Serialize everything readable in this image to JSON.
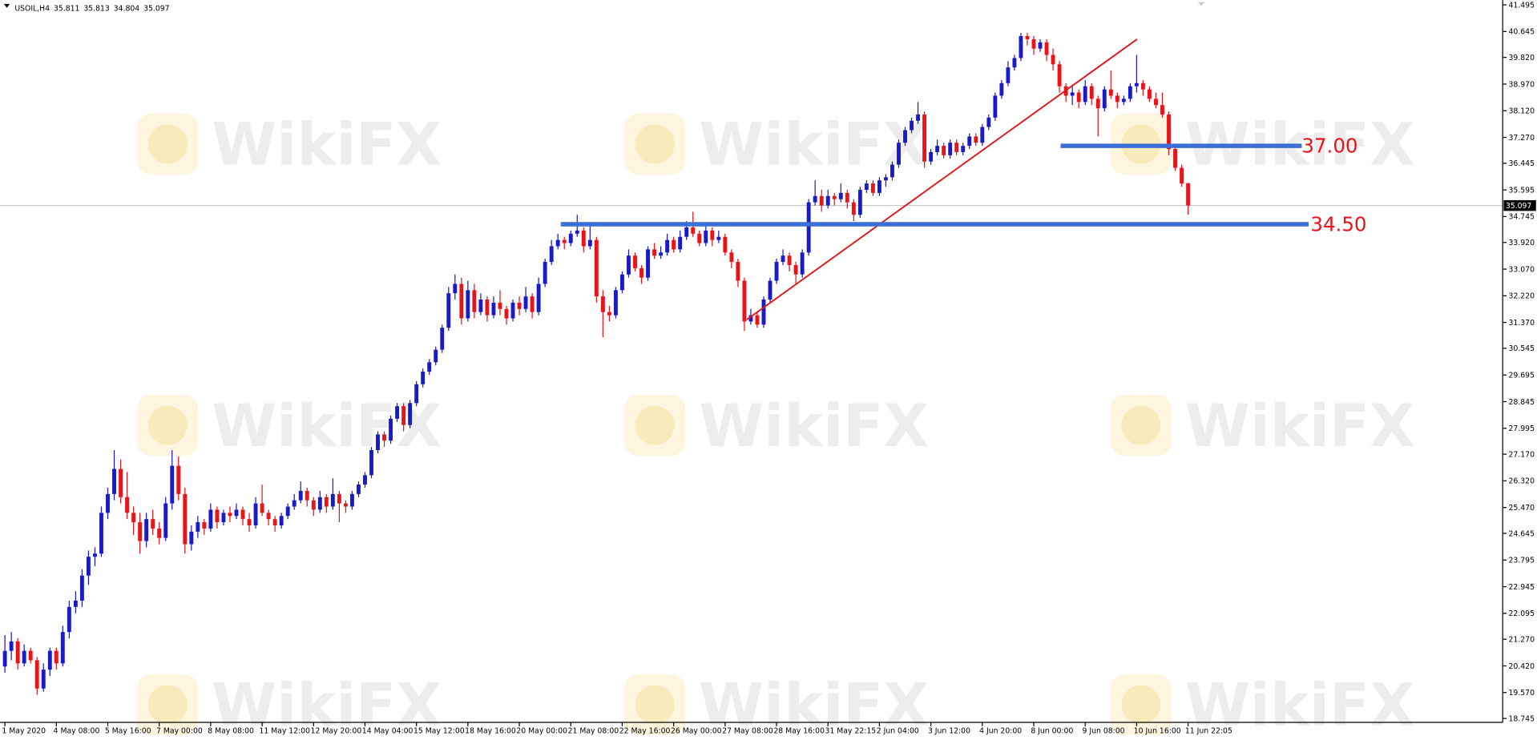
{
  "chart_data": {
    "type": "candlestick",
    "symbol": "USOIL,H4",
    "watermark": "WikiFX",
    "up_color": "#1a1ac8",
    "down_color": "#e8141a",
    "level_color": "#3b6fd6",
    "level_label_color": "#e8141a",
    "last_line_color": "#c0c0c0",
    "ylim": [
      18.62,
      41.65
    ],
    "yticks": [
      41.495,
      40.645,
      {
        "value": 39.82,
        "label": "39.820"
      },
      {
        "value": 38.97,
        "label": "38.970"
      },
      {
        "value": 38.12,
        "label": "38.120"
      },
      {
        "value": 37.27,
        "label": "37.270"
      },
      36.445,
      35.595,
      34.745,
      {
        "value": 33.92,
        "label": "33.920"
      },
      {
        "value": 33.07,
        "label": "33.070"
      },
      {
        "value": 32.22,
        "label": "32.220"
      },
      {
        "value": 31.37,
        "label": "31.370"
      },
      30.545,
      29.695,
      28.845,
      27.995,
      {
        "value": 27.17,
        "label": "27.170"
      },
      {
        "value": 26.32,
        "label": "26.320"
      },
      {
        "value": 25.47,
        "label": "25.470"
      },
      24.645,
      23.795,
      22.945,
      22.095,
      {
        "value": 21.27,
        "label": "21.270"
      },
      {
        "value": 20.42,
        "label": "20.420"
      },
      {
        "value": 19.57,
        "label": "19.570"
      },
      18.745
    ],
    "levels": [
      {
        "value": 37,
        "label": "37.00"
      },
      {
        "value": 34.5,
        "label": "34.50"
      }
    ],
    "last_price_label": "35.097",
    "categories": [
      "1 May 2020",
      null,
      null,
      null,
      null,
      null,
      null,
      null,
      "4 May 08:00",
      null,
      null,
      null,
      null,
      null,
      null,
      null,
      "5 May 16:00",
      null,
      null,
      null,
      null,
      null,
      null,
      null,
      "7 May 00:00",
      null,
      null,
      null,
      null,
      null,
      null,
      null,
      "8 May 08:00",
      null,
      null,
      null,
      null,
      null,
      null,
      null,
      "11 May 12:00",
      null,
      null,
      null,
      null,
      null,
      null,
      null,
      "12 May 20:00",
      null,
      null,
      null,
      null,
      null,
      null,
      null,
      "14 May 04:00",
      null,
      null,
      null,
      null,
      null,
      null,
      null,
      "15 May 12:00",
      null,
      null,
      null,
      null,
      null,
      null,
      null,
      "18 May 16:00",
      null,
      null,
      null,
      null,
      null,
      null,
      null,
      "20 May 00:00",
      null,
      null,
      null,
      null,
      null,
      null,
      null,
      "21 May 08:00",
      null,
      null,
      null,
      null,
      null,
      null,
      null,
      "22 May 16:00",
      null,
      null,
      null,
      null,
      null,
      null,
      null,
      "26 May 00:00",
      null,
      null,
      null,
      null,
      null,
      null,
      null,
      "27 May 08:00",
      null,
      null,
      null,
      null,
      null,
      null,
      null,
      "28 May 16:00",
      null,
      null,
      null,
      null,
      null,
      null,
      null,
      "31 May 22:15",
      null,
      null,
      null,
      null,
      null,
      null,
      null,
      "2 Jun 04:00",
      null,
      null,
      null,
      null,
      null,
      null,
      null,
      "3 Jun 12:00",
      null,
      null,
      null,
      null,
      null,
      null,
      null,
      "4 Jun 20:00",
      null,
      null,
      null,
      null,
      null,
      null,
      null,
      "8 Jun 00:00",
      null,
      null,
      null,
      null,
      null,
      null,
      null,
      "9 Jun 08:00",
      null,
      null,
      null,
      null,
      null,
      null,
      null,
      "10 Jun 16:00",
      null,
      null,
      null,
      null,
      null,
      null,
      null,
      "11 Jun 22:05"
    ],
    "ohlc": [
      [
        20.4,
        21.4,
        20.2,
        20.9
      ],
      [
        20.9,
        21.5,
        20.6,
        21.2
      ],
      [
        21.2,
        21.3,
        20.3,
        20.5
      ],
      [
        20.5,
        21.1,
        20.4,
        20.9
      ],
      [
        20.9,
        21.0,
        20.5,
        20.6
      ],
      [
        20.6,
        20.7,
        19.5,
        19.7
      ],
      [
        19.7,
        20.5,
        19.6,
        20.3
      ],
      [
        20.3,
        21.0,
        20.1,
        20.9
      ],
      [
        20.9,
        21.0,
        20.3,
        20.5
      ],
      [
        20.5,
        21.7,
        20.4,
        21.5
      ],
      [
        21.5,
        22.5,
        21.3,
        22.3
      ],
      [
        22.3,
        22.8,
        22.1,
        22.5
      ],
      [
        22.5,
        23.5,
        22.3,
        23.3
      ],
      [
        23.3,
        24.1,
        23.0,
        23.9
      ],
      [
        23.9,
        24.2,
        23.6,
        24.0
      ],
      [
        24.0,
        25.5,
        23.9,
        25.3
      ],
      [
        25.3,
        26.1,
        25.1,
        25.9
      ],
      [
        25.9,
        27.3,
        25.7,
        26.7
      ],
      [
        26.7,
        27.0,
        25.6,
        25.8
      ],
      [
        25.8,
        26.6,
        25.1,
        25.3
      ],
      [
        25.3,
        25.5,
        24.6,
        25.0
      ],
      [
        25.0,
        25.3,
        24.0,
        24.4
      ],
      [
        24.4,
        25.3,
        24.2,
        25.1
      ],
      [
        25.1,
        25.4,
        24.6,
        24.8
      ],
      [
        24.8,
        25.0,
        24.3,
        24.5
      ],
      [
        24.5,
        25.8,
        24.4,
        25.6
      ],
      [
        25.6,
        27.3,
        25.4,
        26.8
      ],
      [
        26.8,
        27.1,
        25.7,
        25.9
      ],
      [
        25.9,
        26.1,
        24.0,
        24.3
      ],
      [
        24.3,
        24.9,
        24.1,
        24.7
      ],
      [
        24.7,
        25.2,
        24.5,
        25.0
      ],
      [
        25.0,
        25.1,
        24.6,
        24.8
      ],
      [
        24.8,
        25.6,
        24.7,
        25.4
      ],
      [
        25.4,
        25.5,
        24.8,
        25.0
      ],
      [
        25.0,
        25.4,
        24.9,
        25.3
      ],
      [
        25.3,
        25.5,
        25.0,
        25.2
      ],
      [
        25.2,
        25.6,
        25.1,
        25.4
      ],
      [
        25.4,
        25.5,
        24.9,
        25.1
      ],
      [
        25.1,
        25.3,
        24.7,
        24.9
      ],
      [
        24.9,
        25.8,
        24.8,
        25.6
      ],
      [
        25.6,
        26.2,
        25.2,
        25.3
      ],
      [
        25.3,
        25.4,
        24.9,
        25.1
      ],
      [
        25.1,
        25.2,
        24.7,
        24.9
      ],
      [
        24.9,
        25.3,
        24.8,
        25.2
      ],
      [
        25.2,
        25.6,
        25.1,
        25.5
      ],
      [
        25.5,
        25.9,
        25.4,
        25.7
      ],
      [
        25.7,
        26.3,
        25.6,
        26.0
      ],
      [
        26.0,
        26.1,
        25.5,
        25.7
      ],
      [
        25.7,
        25.8,
        25.2,
        25.4
      ],
      [
        25.4,
        26.0,
        25.3,
        25.8
      ],
      [
        25.8,
        25.9,
        25.3,
        25.5
      ],
      [
        25.5,
        26.4,
        25.4,
        25.9
      ],
      [
        25.9,
        26.0,
        25.0,
        25.6
      ],
      [
        25.6,
        25.7,
        25.3,
        25.5
      ],
      [
        25.5,
        26.0,
        25.4,
        25.9
      ],
      [
        25.9,
        26.3,
        25.8,
        26.2
      ],
      [
        26.2,
        26.6,
        26.1,
        26.5
      ],
      [
        26.5,
        27.4,
        26.4,
        27.3
      ],
      [
        27.3,
        27.9,
        27.2,
        27.8
      ],
      [
        27.8,
        27.9,
        27.4,
        27.6
      ],
      [
        27.6,
        28.4,
        27.5,
        28.3
      ],
      [
        28.3,
        28.8,
        28.2,
        28.7
      ],
      [
        28.7,
        28.8,
        27.9,
        28.1
      ],
      [
        28.1,
        28.9,
        28.0,
        28.8
      ],
      [
        28.8,
        29.5,
        28.7,
        29.4
      ],
      [
        29.4,
        29.9,
        29.3,
        29.8
      ],
      [
        29.8,
        30.2,
        29.7,
        30.1
      ],
      [
        30.1,
        30.6,
        30.0,
        30.5
      ],
      [
        30.5,
        31.3,
        30.4,
        31.2
      ],
      [
        31.2,
        32.5,
        31.1,
        32.3
      ],
      [
        32.3,
        32.9,
        32.1,
        32.6
      ],
      [
        32.6,
        32.8,
        31.3,
        31.5
      ],
      [
        31.5,
        32.7,
        31.4,
        32.4
      ],
      [
        32.4,
        32.6,
        31.5,
        31.7
      ],
      [
        31.7,
        32.3,
        31.6,
        32.1
      ],
      [
        32.1,
        32.2,
        31.4,
        31.6
      ],
      [
        31.6,
        32.2,
        31.5,
        32.0
      ],
      [
        32.0,
        32.4,
        31.6,
        31.8
      ],
      [
        31.8,
        31.9,
        31.3,
        31.5
      ],
      [
        31.5,
        32.1,
        31.4,
        32.0
      ],
      [
        32.0,
        32.2,
        31.6,
        31.8
      ],
      [
        31.8,
        32.5,
        31.7,
        32.2
      ],
      [
        32.2,
        32.3,
        31.5,
        31.7
      ],
      [
        31.7,
        32.8,
        31.6,
        32.6
      ],
      [
        32.6,
        33.4,
        32.5,
        33.3
      ],
      [
        33.3,
        34.0,
        33.2,
        33.8
      ],
      [
        33.8,
        34.2,
        33.7,
        34.0
      ],
      [
        34.0,
        34.1,
        33.7,
        33.9
      ],
      [
        33.9,
        34.3,
        33.8,
        34.2
      ],
      [
        34.2,
        34.8,
        34.1,
        34.3
      ],
      [
        34.3,
        34.4,
        33.6,
        33.8
      ],
      [
        33.8,
        34.5,
        33.7,
        34.0
      ],
      [
        34.0,
        34.1,
        32.0,
        32.2
      ],
      [
        32.2,
        32.4,
        30.9,
        31.7
      ],
      [
        31.7,
        31.9,
        31.4,
        31.6
      ],
      [
        31.6,
        32.5,
        31.5,
        32.4
      ],
      [
        32.4,
        33.0,
        32.3,
        32.9
      ],
      [
        32.9,
        33.7,
        32.8,
        33.5
      ],
      [
        33.5,
        33.6,
        33.0,
        33.1
      ],
      [
        33.1,
        33.2,
        32.6,
        32.8
      ],
      [
        32.8,
        33.8,
        32.7,
        33.7
      ],
      [
        33.7,
        33.9,
        33.4,
        33.5
      ],
      [
        33.5,
        33.8,
        33.4,
        33.6
      ],
      [
        33.6,
        34.2,
        33.5,
        34.0
      ],
      [
        34.0,
        34.1,
        33.6,
        33.7
      ],
      [
        33.7,
        34.3,
        33.6,
        34.1
      ],
      [
        34.1,
        34.6,
        34.0,
        34.4
      ],
      [
        34.4,
        34.9,
        34.1,
        34.2
      ],
      [
        34.2,
        34.3,
        33.8,
        33.9
      ],
      [
        33.9,
        34.5,
        33.8,
        34.3
      ],
      [
        34.3,
        34.4,
        33.8,
        34.0
      ],
      [
        34.0,
        34.3,
        33.9,
        34.1
      ],
      [
        34.1,
        34.2,
        33.5,
        33.6
      ],
      [
        33.6,
        33.7,
        33.1,
        33.3
      ],
      [
        33.3,
        33.4,
        32.5,
        32.7
      ],
      [
        32.7,
        32.8,
        31.1,
        31.4
      ],
      [
        31.4,
        31.8,
        31.3,
        31.6
      ],
      [
        31.6,
        31.7,
        31.2,
        31.3
      ],
      [
        31.3,
        32.2,
        31.2,
        32.1
      ],
      [
        32.1,
        32.8,
        32.0,
        32.7
      ],
      [
        32.7,
        33.4,
        32.6,
        33.3
      ],
      [
        33.3,
        33.7,
        33.2,
        33.5
      ],
      [
        33.5,
        33.6,
        33.0,
        33.2
      ],
      [
        33.2,
        33.3,
        32.6,
        32.9
      ],
      [
        32.9,
        33.7,
        32.8,
        33.6
      ],
      [
        33.6,
        35.3,
        33.5,
        35.2
      ],
      [
        35.2,
        35.9,
        35.1,
        35.4
      ],
      [
        35.4,
        35.6,
        34.9,
        35.1
      ],
      [
        35.1,
        35.6,
        35.0,
        35.4
      ],
      [
        35.4,
        35.5,
        35.1,
        35.3
      ],
      [
        35.3,
        35.8,
        35.2,
        35.5
      ],
      [
        35.5,
        35.6,
        35.0,
        35.2
      ],
      [
        35.2,
        35.3,
        34.6,
        34.8
      ],
      [
        34.8,
        35.7,
        34.7,
        35.6
      ],
      [
        35.6,
        35.9,
        35.5,
        35.8
      ],
      [
        35.8,
        35.9,
        35.4,
        35.5
      ],
      [
        35.5,
        36.0,
        35.4,
        35.9
      ],
      [
        35.9,
        36.1,
        35.7,
        36.0
      ],
      [
        36.0,
        36.5,
        35.9,
        36.4
      ],
      [
        36.4,
        37.2,
        36.3,
        37.1
      ],
      [
        37.1,
        37.6,
        37.0,
        37.5
      ],
      [
        37.5,
        37.9,
        37.4,
        37.8
      ],
      [
        37.8,
        38.4,
        37.7,
        38.0
      ],
      [
        38.0,
        38.1,
        36.3,
        36.5
      ],
      [
        36.5,
        36.9,
        36.4,
        36.8
      ],
      [
        36.8,
        37.2,
        36.7,
        37.0
      ],
      [
        37.0,
        37.1,
        36.6,
        36.7
      ],
      [
        36.7,
        37.2,
        36.6,
        37.1
      ],
      [
        37.1,
        37.2,
        36.7,
        36.8
      ],
      [
        36.8,
        37.1,
        36.7,
        37.0
      ],
      [
        37.0,
        37.4,
        36.9,
        37.3
      ],
      [
        37.3,
        37.4,
        37.0,
        37.1
      ],
      [
        37.1,
        37.7,
        37.0,
        37.6
      ],
      [
        37.6,
        38.0,
        37.5,
        37.9
      ],
      [
        37.9,
        38.7,
        37.8,
        38.6
      ],
      [
        38.6,
        39.1,
        38.5,
        39.0
      ],
      [
        39.0,
        39.7,
        38.9,
        39.5
      ],
      [
        39.5,
        39.9,
        39.4,
        39.8
      ],
      [
        39.8,
        40.6,
        39.7,
        40.5
      ],
      [
        40.5,
        40.6,
        40.2,
        40.4
      ],
      [
        40.4,
        40.5,
        39.9,
        40.1
      ],
      [
        40.1,
        40.4,
        40.0,
        40.3
      ],
      [
        40.3,
        40.4,
        39.7,
        39.9
      ],
      [
        39.9,
        40.1,
        39.4,
        39.6
      ],
      [
        39.6,
        39.7,
        38.7,
        38.9
      ],
      [
        38.9,
        39.0,
        38.4,
        38.6
      ],
      [
        38.6,
        38.9,
        38.3,
        38.7
      ],
      [
        38.7,
        38.8,
        38.2,
        38.4
      ],
      [
        38.4,
        39.1,
        38.3,
        38.9
      ],
      [
        38.9,
        39.0,
        38.3,
        38.5
      ],
      [
        38.5,
        38.6,
        37.3,
        38.2
      ],
      [
        38.2,
        38.9,
        38.1,
        38.8
      ],
      [
        38.8,
        39.4,
        38.5,
        38.6
      ],
      [
        38.6,
        38.7,
        38.2,
        38.4
      ],
      [
        38.4,
        38.6,
        38.3,
        38.5
      ],
      [
        38.5,
        39.0,
        38.4,
        38.9
      ],
      [
        38.9,
        39.9,
        38.7,
        39.0
      ],
      [
        39.0,
        39.1,
        38.6,
        38.8
      ],
      [
        38.8,
        38.9,
        38.4,
        38.5
      ],
      [
        38.5,
        38.7,
        38.2,
        38.3
      ],
      [
        38.3,
        38.7,
        37.9,
        38.0
      ],
      [
        38.0,
        38.1,
        36.7,
        36.9
      ],
      [
        36.9,
        37.0,
        36.2,
        36.3
      ],
      [
        36.3,
        36.4,
        35.7,
        35.8
      ],
      [
        35.811,
        35.813,
        34.804,
        35.097
      ]
    ]
  }
}
